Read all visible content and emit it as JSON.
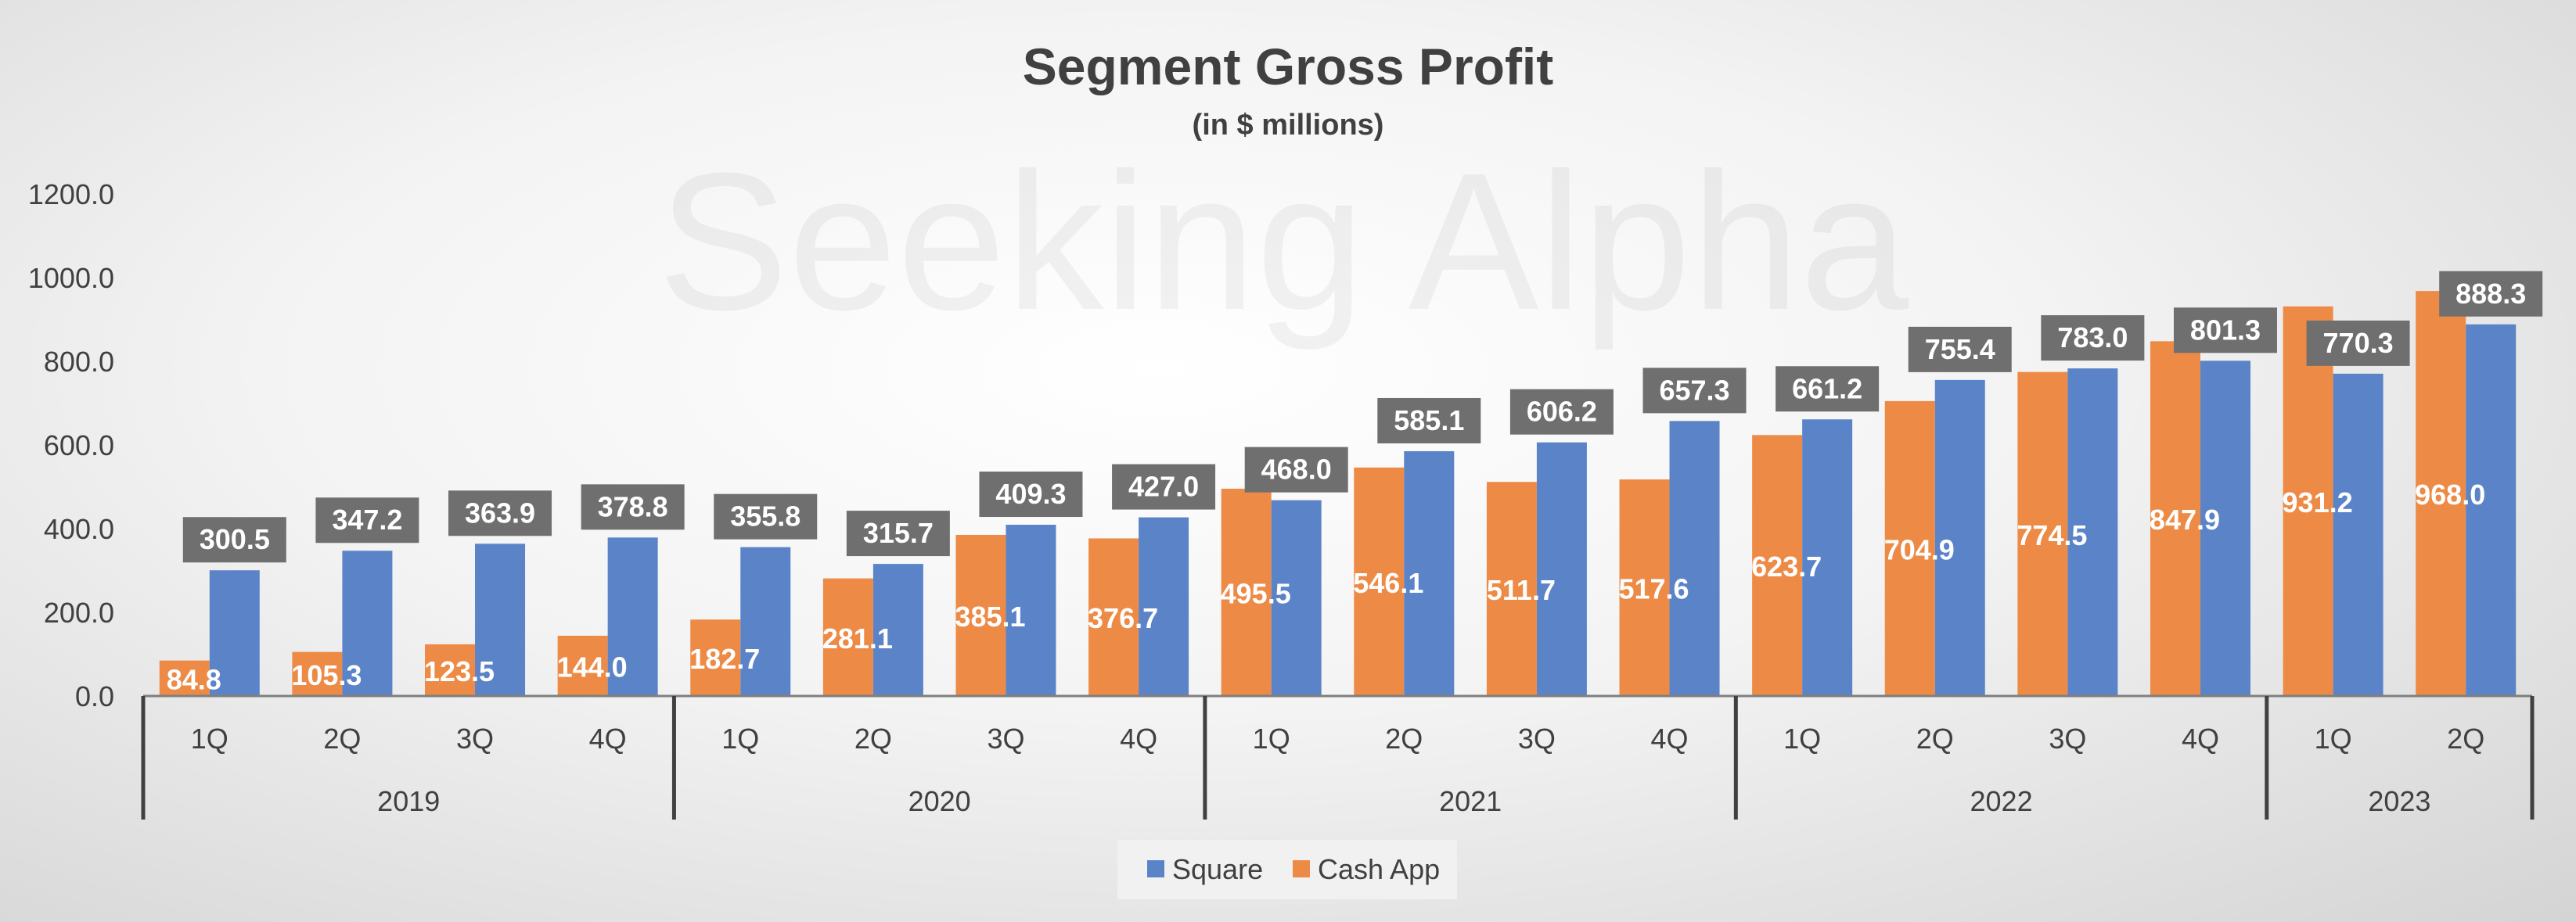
{
  "chart_data": {
    "type": "bar",
    "title": "Segment Gross Profit",
    "subtitle": "(in $ millions)",
    "watermark": "Seeking Alpha",
    "xlabel": "",
    "ylabel": "",
    "ylim": [
      0,
      1200
    ],
    "yticks": [
      "0.0",
      "200.0",
      "400.0",
      "600.0",
      "800.0",
      "1000.0",
      "1200.0"
    ],
    "grid": false,
    "legend_position": "bottom",
    "categories": [
      {
        "quarter": "1Q",
        "year": "2019"
      },
      {
        "quarter": "2Q",
        "year": "2019"
      },
      {
        "quarter": "3Q",
        "year": "2019"
      },
      {
        "quarter": "4Q",
        "year": "2019"
      },
      {
        "quarter": "1Q",
        "year": "2020"
      },
      {
        "quarter": "2Q",
        "year": "2020"
      },
      {
        "quarter": "3Q",
        "year": "2020"
      },
      {
        "quarter": "4Q",
        "year": "2020"
      },
      {
        "quarter": "1Q",
        "year": "2021"
      },
      {
        "quarter": "2Q",
        "year": "2021"
      },
      {
        "quarter": "3Q",
        "year": "2021"
      },
      {
        "quarter": "4Q",
        "year": "2021"
      },
      {
        "quarter": "1Q",
        "year": "2022"
      },
      {
        "quarter": "2Q",
        "year": "2022"
      },
      {
        "quarter": "3Q",
        "year": "2022"
      },
      {
        "quarter": "4Q",
        "year": "2022"
      },
      {
        "quarter": "1Q",
        "year": "2023"
      },
      {
        "quarter": "2Q",
        "year": "2023"
      }
    ],
    "years": [
      "2019",
      "2020",
      "2021",
      "2022",
      "2023"
    ],
    "series": [
      {
        "name": "Cash App",
        "color": "#ED8B46",
        "values": [
          84.8,
          105.3,
          123.5,
          144.0,
          182.7,
          281.1,
          385.1,
          376.7,
          495.5,
          546.1,
          511.7,
          517.6,
          623.7,
          704.9,
          774.5,
          847.9,
          931.2,
          968.0
        ],
        "labels": [
          "84.8",
          "105.3",
          "123.5",
          "144.0",
          "182.7",
          "281.1",
          "385.1",
          "376.7",
          "495.5",
          "546.1",
          "511.7",
          "517.6",
          "623.7",
          "704.9",
          "774.5",
          "847.9",
          "931.2",
          "968.0"
        ]
      },
      {
        "name": "Square",
        "color": "#5B84C8",
        "values": [
          300.5,
          347.2,
          363.9,
          378.8,
          355.8,
          315.7,
          409.3,
          427.0,
          468.0,
          585.1,
          606.2,
          657.3,
          661.2,
          755.4,
          783.0,
          801.3,
          770.3,
          888.3
        ],
        "labels": [
          "300.5",
          "347.2",
          "363.9",
          "378.8",
          "355.8",
          "315.7",
          "409.3",
          "427.0",
          "468.0",
          "585.1",
          "606.2",
          "657.3",
          "661.2",
          "755.4",
          "783.0",
          "801.3",
          "770.3",
          "888.3"
        ]
      }
    ],
    "legend": [
      {
        "name": "Square",
        "color": "#5B84C8"
      },
      {
        "name": "Cash App",
        "color": "#ED8B46"
      }
    ],
    "label_box_color": "#6F6F6F"
  }
}
